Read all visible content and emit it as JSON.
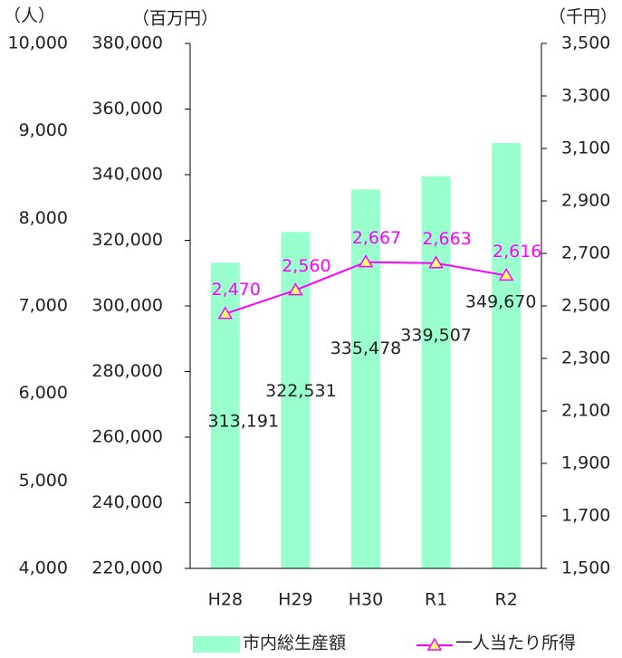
{
  "chart_data": {
    "type": "bar",
    "categories": [
      "H28",
      "H29",
      "H30",
      "R1",
      "R2"
    ],
    "series": [
      {
        "name": "市内総生産額",
        "color": "#99ffcc",
        "type": "bar",
        "values": [
          313191,
          322531,
          335478,
          339507,
          349670
        ],
        "value_labels": [
          "313,191",
          "322,531",
          "335,478",
          "339,507",
          "349,670"
        ]
      },
      {
        "name": "一人当たり所得",
        "color": "#ff00ff",
        "marker_color": "#ffff66",
        "type": "line",
        "axis": "y2",
        "values": [
          2470,
          2560,
          2667,
          2663,
          2616
        ],
        "value_labels": [
          "2,470",
          "2,560",
          "2,667",
          "2,663",
          "2,616"
        ]
      }
    ],
    "y3label": "（人）",
    "ylabel": "（百万円）",
    "y2label": "（千円）",
    "y3lim": [
      4000,
      10000
    ],
    "y3ticks": [
      {
        "value": 4000,
        "label": "4,000"
      },
      {
        "value": 5000,
        "label": "5,000"
      },
      {
        "value": 6000,
        "label": "6,000"
      },
      {
        "value": 7000,
        "label": "7,000"
      },
      {
        "value": 8000,
        "label": "8,000"
      },
      {
        "value": 9000,
        "label": "9,000"
      },
      {
        "value": 10000,
        "label": "10,000"
      }
    ],
    "ylim": [
      220000,
      380000
    ],
    "yticks": [
      {
        "value": 220000,
        "label": "220,000"
      },
      {
        "value": 240000,
        "label": "240,000"
      },
      {
        "value": 260000,
        "label": "260,000"
      },
      {
        "value": 280000,
        "label": "280,000"
      },
      {
        "value": 300000,
        "label": "300,000"
      },
      {
        "value": 320000,
        "label": "320,000"
      },
      {
        "value": 340000,
        "label": "340,000"
      },
      {
        "value": 360000,
        "label": "360,000"
      },
      {
        "value": 380000,
        "label": "380,000"
      }
    ],
    "y2lim": [
      1500,
      3500
    ],
    "y2ticks": [
      {
        "value": 1500,
        "label": "1,500"
      },
      {
        "value": 1700,
        "label": "1,700"
      },
      {
        "value": 1900,
        "label": "1,900"
      },
      {
        "value": 2100,
        "label": "2,100"
      },
      {
        "value": 2300,
        "label": "2,300"
      },
      {
        "value": 2500,
        "label": "2,500"
      },
      {
        "value": 2700,
        "label": "2,700"
      },
      {
        "value": 2900,
        "label": "2,900"
      },
      {
        "value": 3100,
        "label": "3,100"
      },
      {
        "value": 3300,
        "label": "3,300"
      },
      {
        "value": 3500,
        "label": "3,500"
      }
    ]
  }
}
